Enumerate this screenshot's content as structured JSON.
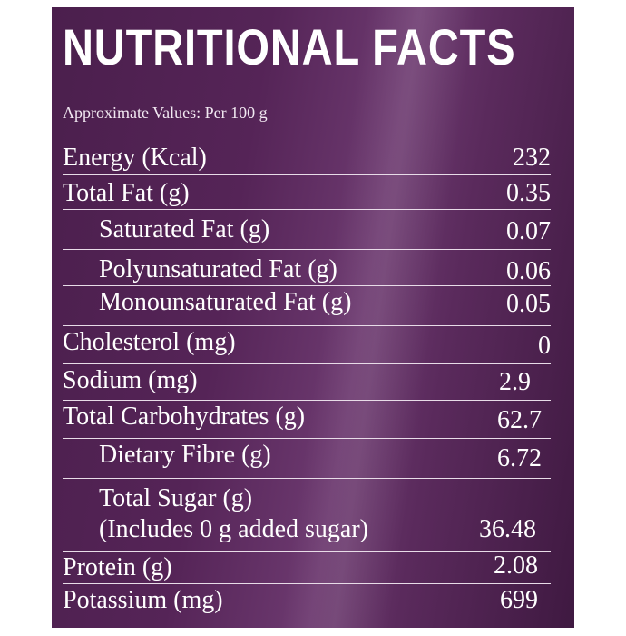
{
  "title": "NUTRITIONAL FACTS",
  "subtitle": "Approximate Values: Per 100 g",
  "rows": [
    {
      "label": "Energy (Kcal)",
      "value": "232"
    },
    {
      "label": "Total Fat (g)",
      "value": "0.35"
    },
    {
      "label": "Saturated Fat (g)",
      "value": "0.07"
    },
    {
      "label": "Polyunsaturated Fat (g)",
      "value": "0.06"
    },
    {
      "label": "Monounsaturated Fat (g)",
      "value": "0.05"
    },
    {
      "label": "Cholesterol (mg)",
      "value": "0"
    },
    {
      "label": "Sodium (mg)",
      "value": "2.9"
    },
    {
      "label": "Total Carbohydrates (g)",
      "value": "62.7"
    },
    {
      "label": "Dietary Fibre (g)",
      "value": "6.72"
    },
    {
      "label": "Total Sugar (g)",
      "label2": "(Includes 0 g added sugar)",
      "value": "36.48"
    },
    {
      "label": "Protein (g)",
      "value": "2.08"
    },
    {
      "label": "Potassium (mg)",
      "value": "699"
    }
  ],
  "colors": {
    "panel": "#552457",
    "text": "#ffffff"
  }
}
